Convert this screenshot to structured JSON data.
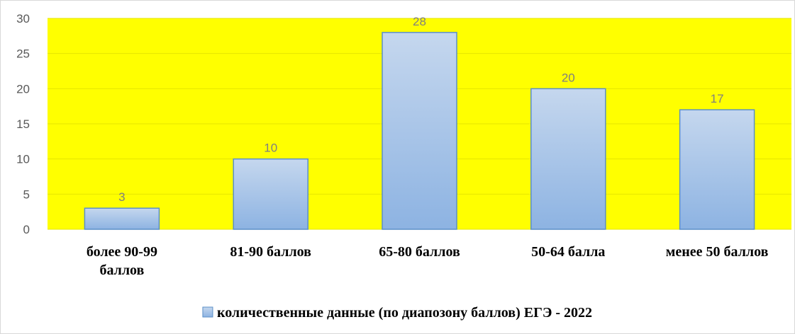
{
  "chart_data": {
    "type": "bar",
    "categories": [
      "более 90-99 баллов",
      "81-90 баллов",
      "65-80 баллов",
      "50-64 балла",
      "менее 50 баллов"
    ],
    "category_lines": [
      [
        "более 90-99",
        "баллов"
      ],
      [
        "81-90 баллов"
      ],
      [
        "65-80 баллов"
      ],
      [
        "50-64 балла"
      ],
      [
        "менее 50 баллов"
      ]
    ],
    "series": [
      {
        "name": "количественные данные (по диапозону баллов) ЕГЭ - 2022",
        "values": [
          3,
          10,
          28,
          20,
          17
        ]
      }
    ],
    "ylim": [
      0,
      30
    ],
    "yticks": [
      "0",
      "5",
      "10",
      "15",
      "20",
      "25",
      "30"
    ],
    "grid": true,
    "legend_position": "bottom",
    "colors": {
      "plot_background": "#ffff00",
      "bar_top": "#c5d7ee",
      "bar_bottom": "#8db3e2",
      "bar_stroke": "#5b8fc7",
      "gridline": "#e6e600"
    }
  }
}
